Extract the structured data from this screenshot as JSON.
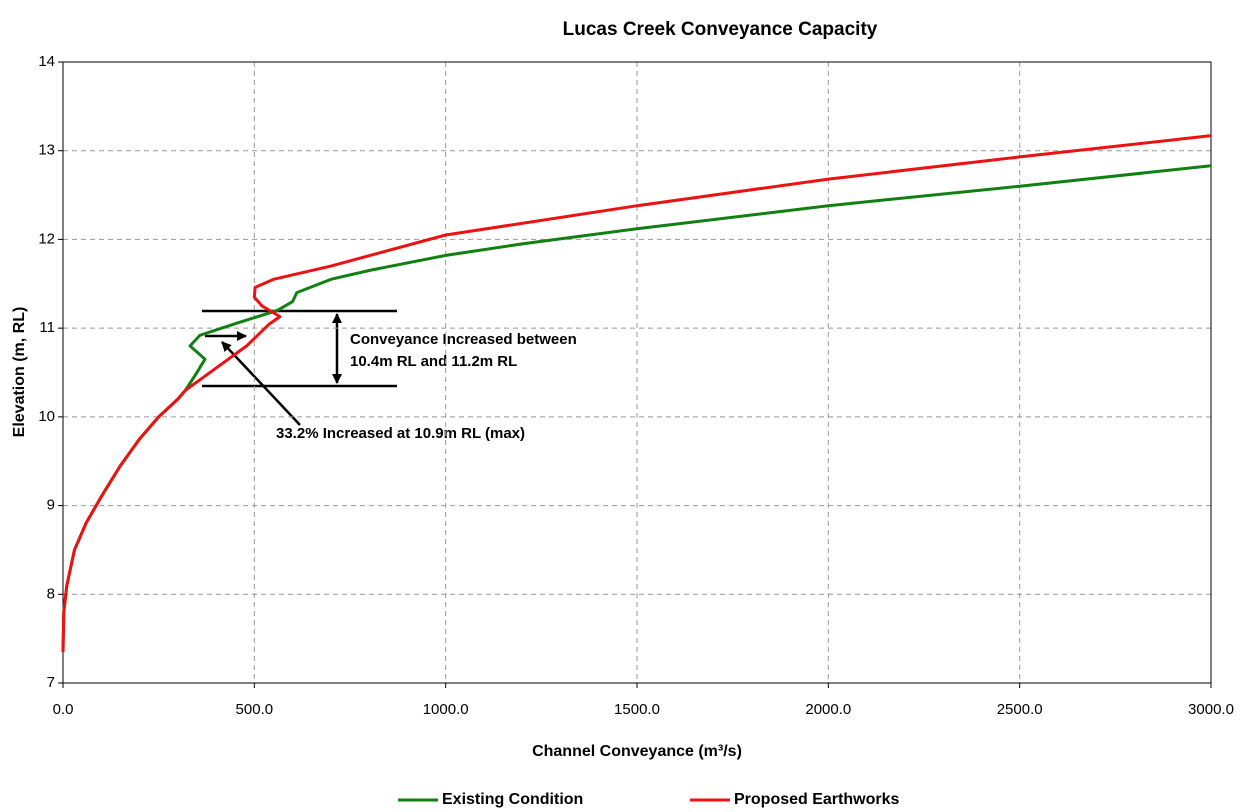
{
  "chart_data": {
    "type": "line",
    "title": "Lucas Creek Conveyance Capacity",
    "x_label": "Channel Conveyance (m³/s)",
    "y_label": "Elevation (m, RL)",
    "annotations": [
      "Conveyance Increased between",
      "10.4m RL and 11.2m RL",
      "33.2% Increased at 10.9m RL (max)"
    ],
    "xlim": [
      0,
      3000
    ],
    "ylim": [
      7,
      14
    ],
    "xticks": [
      {
        "value": 0,
        "label": "0.0"
      },
      {
        "value": 500,
        "label": "500.0"
      },
      {
        "value": 1000,
        "label": "1000.0"
      },
      {
        "value": 1500,
        "label": "1500.0"
      },
      {
        "value": 2000,
        "label": "2000.0"
      },
      {
        "value": 2500,
        "label": "2500.0"
      },
      {
        "value": 3000,
        "label": "3000.0"
      }
    ],
    "yticks": [
      7,
      8,
      9,
      10,
      11,
      12,
      13,
      14
    ],
    "grid": true,
    "legend": "bottom",
    "series": [
      {
        "name": "Existing Condition",
        "color": "#108010",
        "x": [
          0,
          2,
          10,
          30,
          60,
          100,
          150,
          200,
          250,
          300,
          320,
          350,
          371,
          332,
          358,
          450,
          560,
          600,
          611,
          700,
          800,
          1000,
          1200,
          1500,
          2000,
          2500,
          3000
        ],
        "values": [
          7.35,
          7.8,
          8.1,
          8.5,
          8.8,
          9.1,
          9.45,
          9.75,
          10.0,
          10.2,
          10.3,
          10.5,
          10.65,
          10.8,
          10.92,
          11.05,
          11.2,
          11.3,
          11.4,
          11.55,
          11.65,
          11.82,
          11.95,
          12.12,
          12.38,
          12.6,
          12.83
        ]
      },
      {
        "name": "Proposed Earthworks",
        "color": "#ee1111",
        "x": [
          0,
          2,
          10,
          30,
          60,
          100,
          150,
          200,
          250,
          300,
          320,
          400,
          480,
          540,
          567,
          520,
          500,
          502,
          550,
          700,
          1000,
          1500,
          2000,
          2500,
          3000
        ],
        "values": [
          7.35,
          7.8,
          8.1,
          8.5,
          8.8,
          9.1,
          9.45,
          9.75,
          10.0,
          10.2,
          10.3,
          10.55,
          10.8,
          11.05,
          11.13,
          11.25,
          11.35,
          11.46,
          11.55,
          11.7,
          12.05,
          12.38,
          12.68,
          12.93,
          13.17
        ]
      }
    ]
  }
}
